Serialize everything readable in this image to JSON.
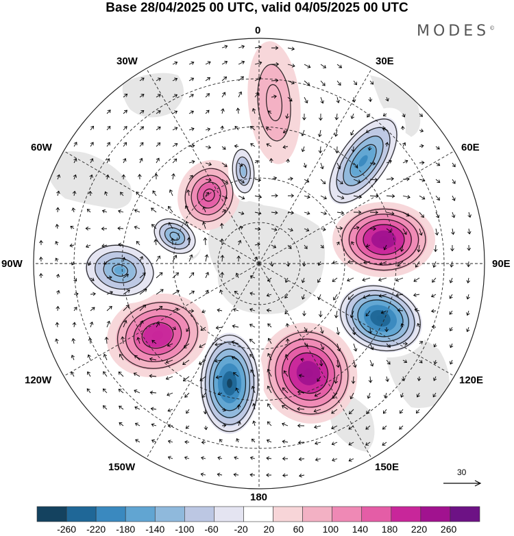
{
  "title": "Base 28/04/2025 00 UTC, valid 04/05/2025 00 UTC",
  "brand": "MODES",
  "brand_mark": "©",
  "longitude_labels": {
    "top": "0",
    "bottom": "180",
    "left": "90W",
    "right": "90E",
    "upper_left_1": "30W",
    "upper_left_2": "60W",
    "upper_right_1": "30E",
    "upper_right_2": "60E",
    "lower_left_1": "120W",
    "lower_left_2": "150W",
    "lower_right_1": "120E",
    "lower_right_2": "150E"
  },
  "reference_vector": {
    "value": "30",
    "icon": "arrow-right-icon"
  },
  "colorbar": {
    "ticks": [
      "-260",
      "-220",
      "-180",
      "-140",
      "-100",
      "-60",
      "-20",
      "20",
      "60",
      "100",
      "140",
      "180",
      "220",
      "260"
    ],
    "colors": [
      "#14425f",
      "#1f6797",
      "#3a89bf",
      "#61a5d2",
      "#8fb9dc",
      "#bcc7e3",
      "#e4e4f1",
      "#ffffff",
      "#f7d5d8",
      "#f3b1c4",
      "#ef89b5",
      "#e45da6",
      "#c8269a",
      "#a1128f",
      "#6d1285"
    ]
  },
  "anomaly_centers": [
    {
      "id": "blue-30e-60e",
      "sign": "negative",
      "peak": -200
    },
    {
      "id": "pink-70e",
      "sign": "positive",
      "peak": 220
    },
    {
      "id": "blue-110e",
      "sign": "negative",
      "peak": -260
    },
    {
      "id": "pink-160e",
      "sign": "positive",
      "peak": 240
    },
    {
      "id": "blue-170w",
      "sign": "negative",
      "peak": -270
    },
    {
      "id": "pink-120w",
      "sign": "positive",
      "peak": 210
    },
    {
      "id": "blue-90w",
      "sign": "negative",
      "peak": -170
    },
    {
      "id": "blue-60w",
      "sign": "negative",
      "peak": -140
    },
    {
      "id": "pink-45w",
      "sign": "positive",
      "peak": 160
    },
    {
      "id": "blue-20w",
      "sign": "negative",
      "peak": -110
    },
    {
      "id": "pink-10e",
      "sign": "positive",
      "peak": 70
    }
  ]
}
